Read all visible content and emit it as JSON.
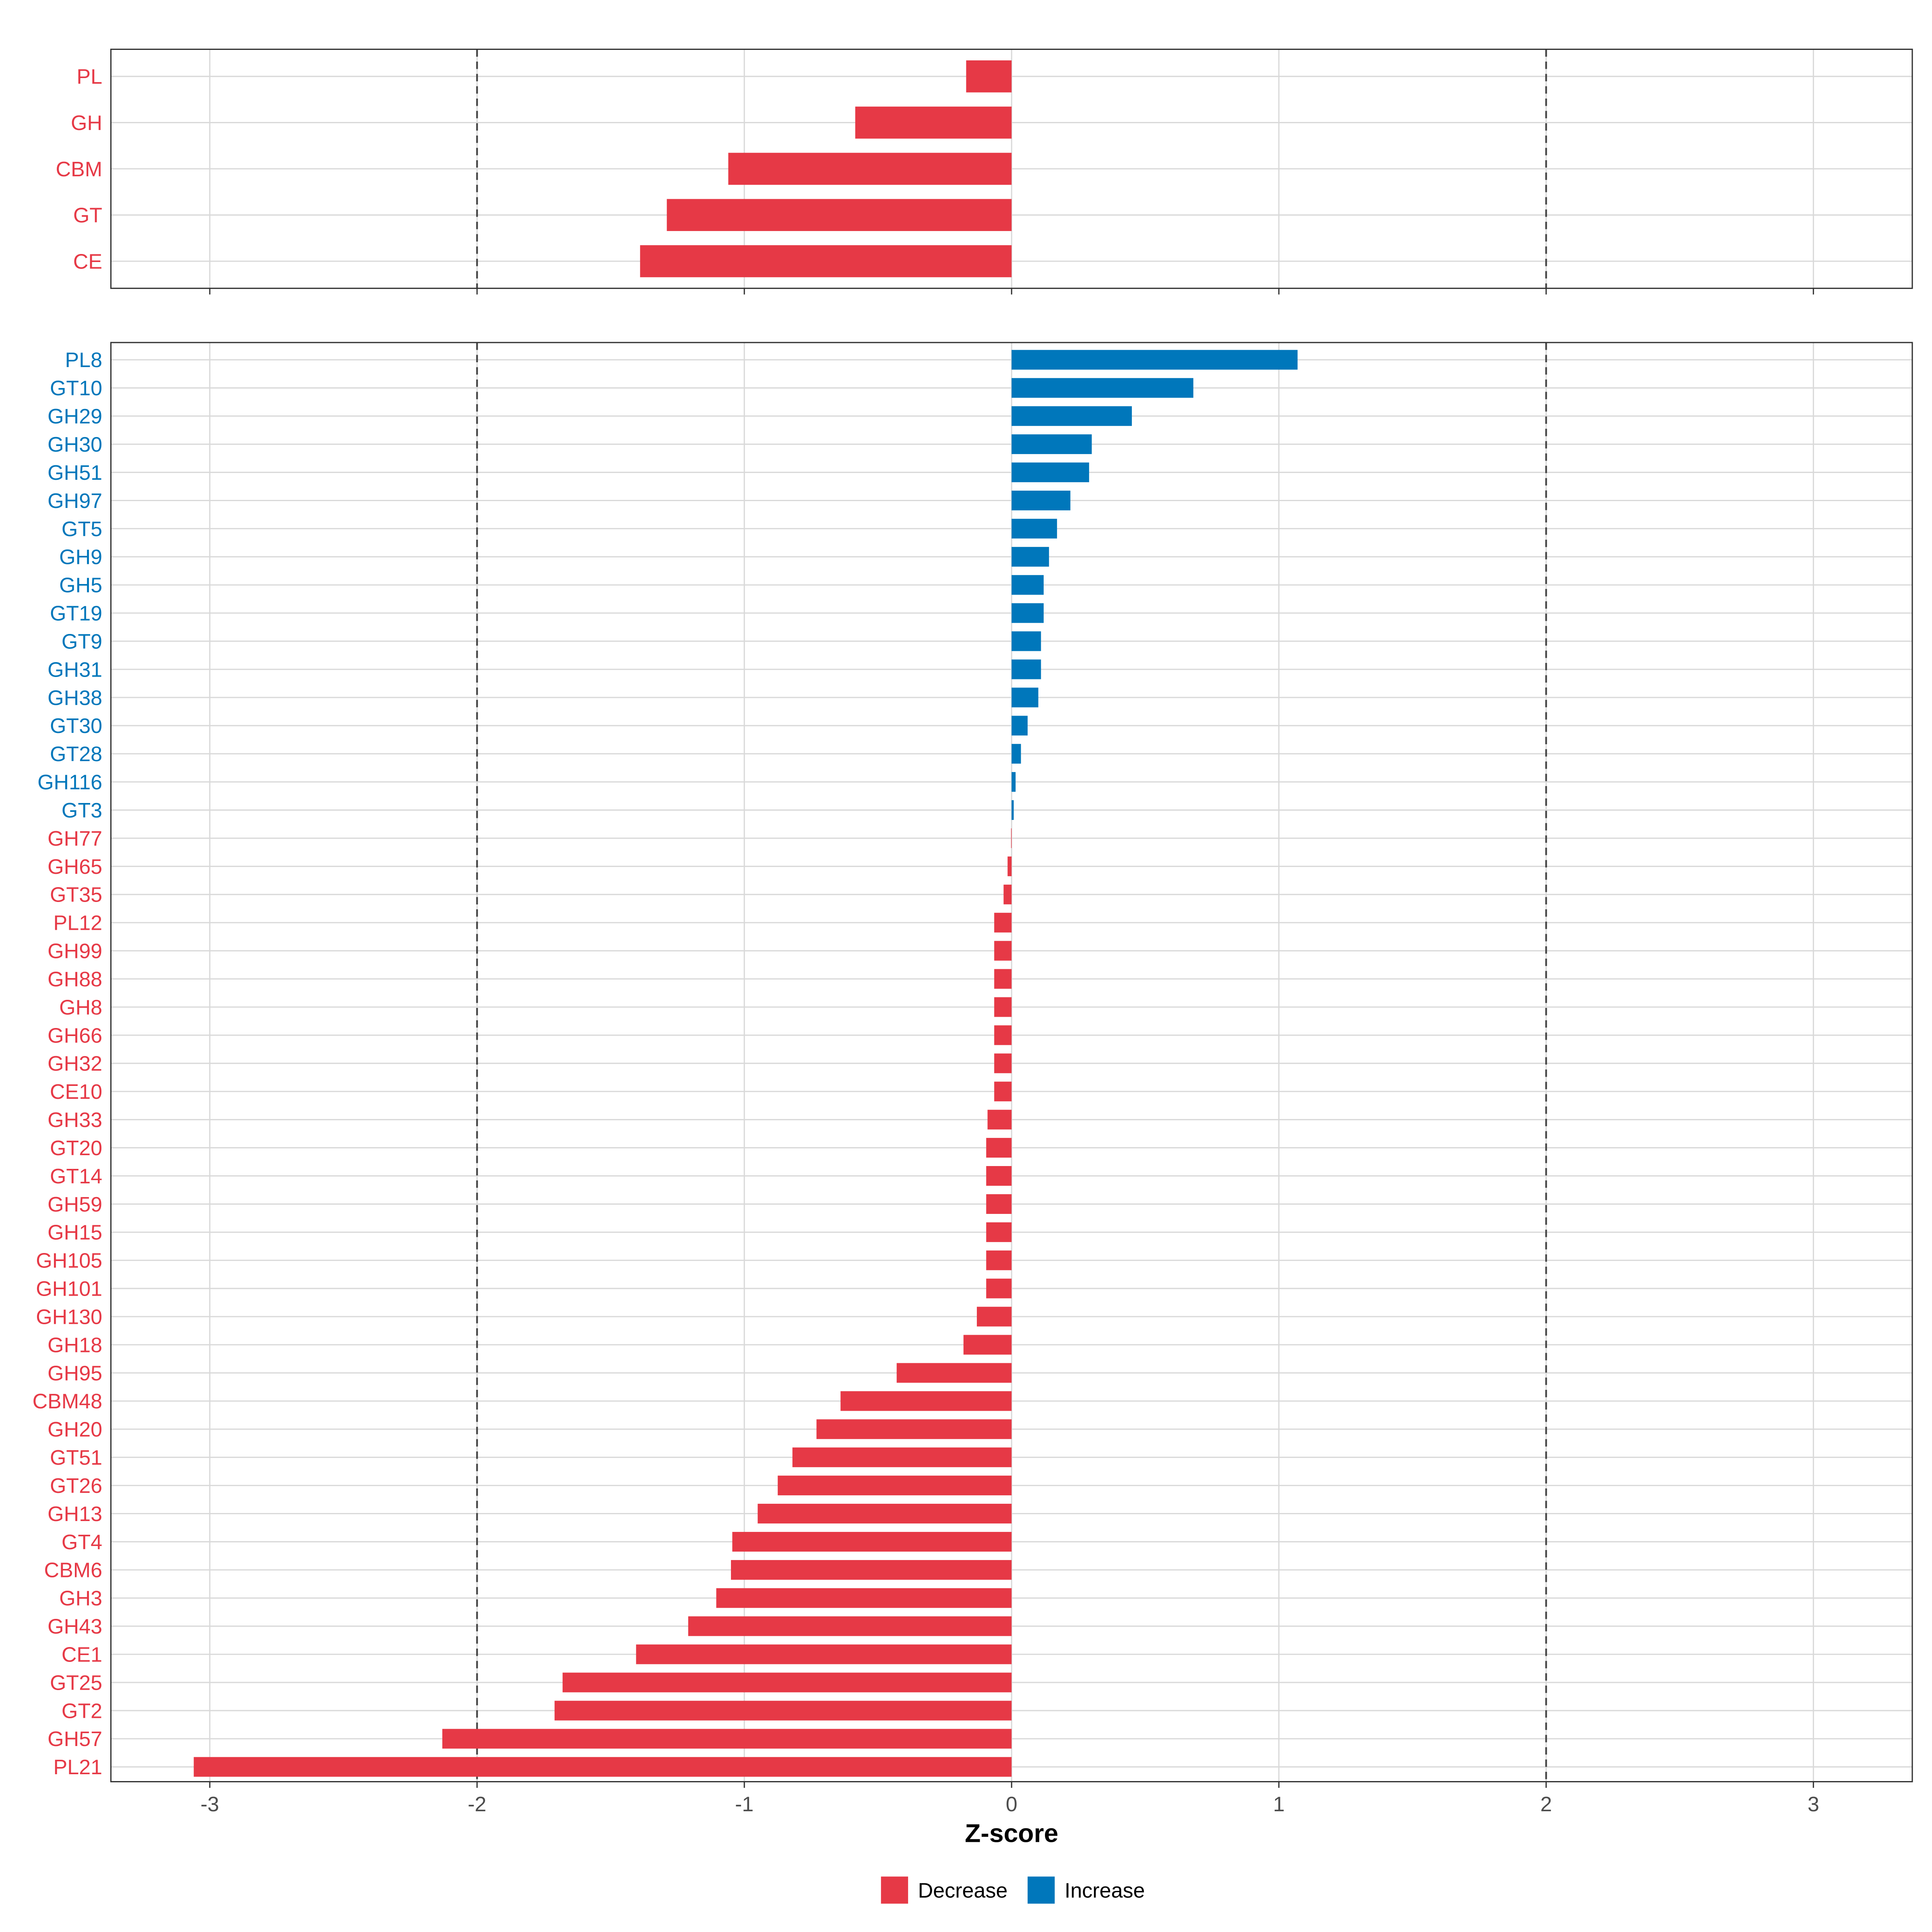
{
  "colors": {
    "decrease": "#E63946",
    "increase": "#0077BB",
    "grid": "#D9D9D9"
  },
  "chart_data": [
    {
      "type": "bar",
      "orientation": "horizontal",
      "panel": "top",
      "categories": [
        "PL",
        "GH",
        "CBM",
        "GT",
        "CE"
      ],
      "values": [
        -0.17,
        -0.585,
        -1.06,
        -1.29,
        -1.39
      ],
      "direction": [
        "Decrease",
        "Decrease",
        "Decrease",
        "Decrease",
        "Decrease"
      ],
      "xlim": [
        -3.37,
        3.37
      ],
      "reference_lines": [
        -2,
        2
      ],
      "grid": true
    },
    {
      "type": "bar",
      "orientation": "horizontal",
      "panel": "bottom",
      "categories": [
        "PL8",
        "GT10",
        "GH29",
        "GH30",
        "GH51",
        "GH97",
        "GT5",
        "GH9",
        "GH5",
        "GT19",
        "GT9",
        "GH31",
        "GH38",
        "GT30",
        "GT28",
        "GH116",
        "GT3",
        "GH77",
        "GH65",
        "GT35",
        "PL12",
        "GH99",
        "GH88",
        "GH8",
        "GH66",
        "GH32",
        "CE10",
        "GH33",
        "GT20",
        "GT14",
        "GH59",
        "GH15",
        "GH105",
        "GH101",
        "GH130",
        "GH18",
        "GH95",
        "CBM48",
        "GH20",
        "GT51",
        "GT26",
        "GH13",
        "GT4",
        "CBM6",
        "GH3",
        "GH43",
        "CE1",
        "GT25",
        "GT2",
        "GH57",
        "PL21"
      ],
      "values": [
        1.07,
        0.68,
        0.45,
        0.3,
        0.29,
        0.22,
        0.17,
        0.14,
        0.12,
        0.12,
        0.11,
        0.11,
        0.1,
        0.06,
        0.035,
        0.015,
        0.008,
        -0.002,
        -0.015,
        -0.03,
        -0.065,
        -0.065,
        -0.065,
        -0.065,
        -0.065,
        -0.065,
        -0.065,
        -0.09,
        -0.095,
        -0.095,
        -0.095,
        -0.095,
        -0.095,
        -0.095,
        -0.13,
        -0.18,
        -0.43,
        -0.64,
        -0.73,
        -0.82,
        -0.875,
        -0.95,
        -1.045,
        -1.05,
        -1.105,
        -1.21,
        -1.405,
        -1.68,
        -1.71,
        -2.13,
        -3.06
      ],
      "xlim": [
        -3.37,
        3.37
      ],
      "xticks": [
        -3,
        -2,
        -1,
        0,
        1,
        2,
        3
      ],
      "xtick_labels": [
        "-3",
        "-2",
        "-1",
        "0",
        "1",
        "2",
        "3"
      ],
      "xlabel": "Z-score",
      "reference_lines": [
        -2,
        2
      ],
      "grid": true,
      "legend": {
        "placement": "bottom",
        "entries": [
          "Decrease",
          "Increase"
        ]
      }
    }
  ]
}
